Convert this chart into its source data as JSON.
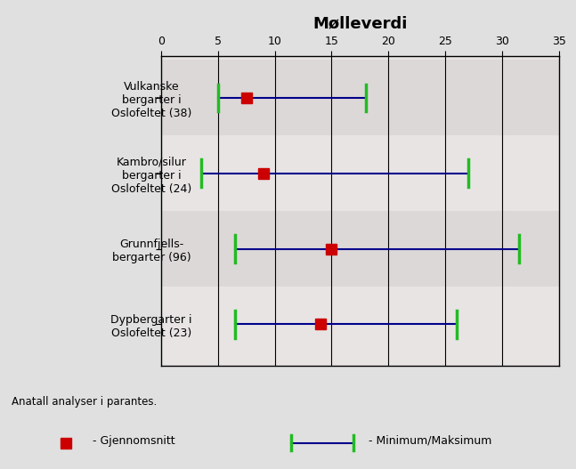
{
  "title": "Mølleverdi",
  "categories": [
    "Vulkanske\nbergarter i\nOslofeltet (38)",
    "Kambro/silur\nbergarter i\nOslofeltet (24)",
    "Grunnfjells-\nbergarter (96)",
    "Dypbergarter i\nOslofeltet (23)"
  ],
  "means": [
    7.5,
    9.0,
    15.0,
    14.0
  ],
  "mins": [
    5.0,
    3.5,
    6.5,
    6.5
  ],
  "maxs": [
    18.0,
    27.0,
    31.5,
    26.0
  ],
  "xlim": [
    0,
    35
  ],
  "xticks": [
    0,
    5,
    10,
    15,
    20,
    25,
    30,
    35
  ],
  "grid_lines": [
    5,
    10,
    15,
    20,
    25,
    30
  ],
  "mean_color": "#cc0000",
  "line_color": "#00008b",
  "tick_color": "#22bb22",
  "bg_color": "#e0e0e0",
  "plot_bg_color": "#e8e4e4",
  "band_colors": [
    "#ddd8d8",
    "#e8e4e4"
  ],
  "footnote": "Anatall analyser i parantes.",
  "legend_mean_label": "- Gjennomsnitt",
  "legend_minmax_label": "- Minimum/Maksimum",
  "title_fontsize": 13,
  "label_fontsize": 9,
  "tick_fontsize": 9,
  "footnote_fontsize": 8.5
}
